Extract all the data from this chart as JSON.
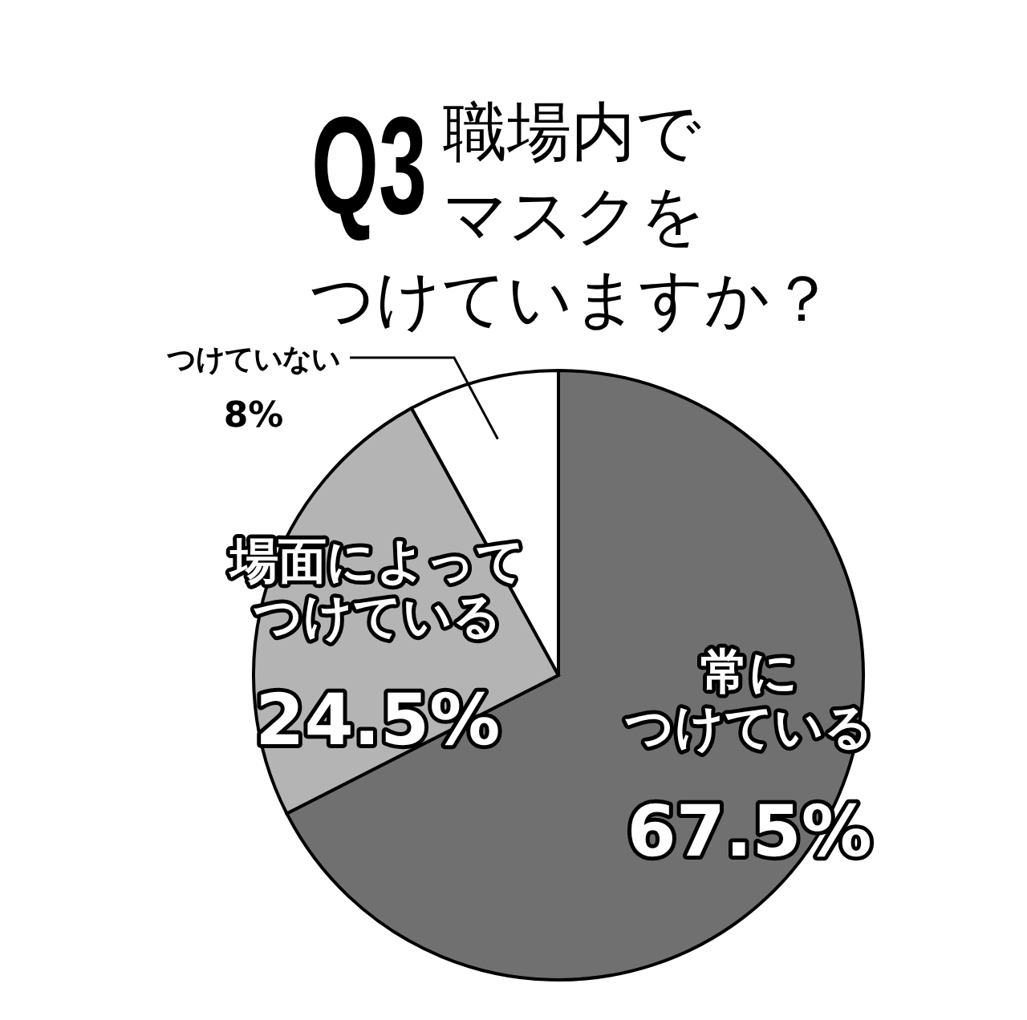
{
  "chart_data": {
    "type": "pie",
    "title": "Q3",
    "subtitle": "職場内でマスクをつけていますか？",
    "categories": [
      "常につけている",
      "場面によってつけている",
      "つけていない"
    ],
    "values": [
      67.5,
      24.5,
      8
    ],
    "colors": [
      "#707070",
      "#b4b4b4",
      "#ffffff"
    ],
    "value_labels": [
      "67.5%",
      "24.5%",
      "8%"
    ]
  }
}
